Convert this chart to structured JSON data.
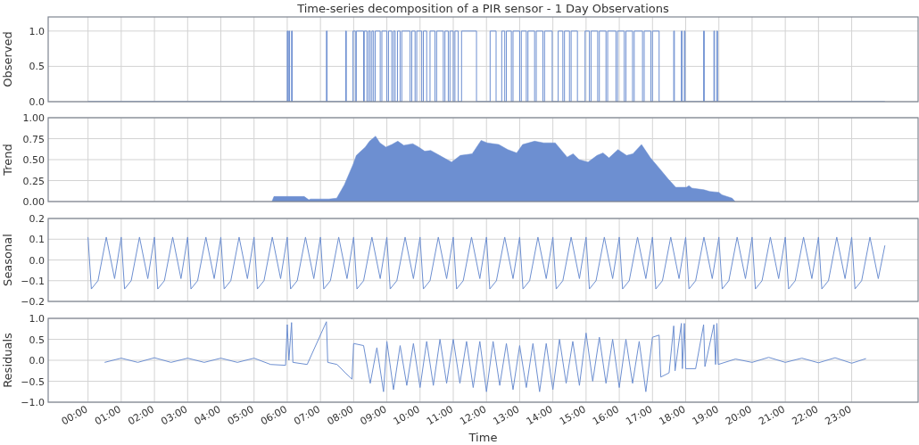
{
  "chart_data": [
    {
      "type": "step",
      "title": "Time-series decomposition of a PIR sensor - 1 Day Observations",
      "ylabel": "Observed",
      "xlim": [
        -1.2,
        25
      ],
      "xticks": [
        0,
        1,
        2,
        3,
        4,
        5,
        6,
        7,
        8,
        9,
        10,
        11,
        12,
        13,
        14,
        15,
        16,
        17,
        18,
        19,
        20,
        21,
        22,
        23
      ],
      "ylim": [
        0,
        1.2
      ],
      "yticks": [
        {
          "value": 0,
          "label": "0.0"
        },
        {
          "value": 0.5,
          "label": "0.5"
        },
        {
          "value": 1,
          "label": "1.0"
        }
      ],
      "grid": true,
      "tick_labels": "y",
      "series": [
        {
          "color": "#6d8fd1",
          "x": [
            0,
            6.0,
            6.02,
            6.05,
            6.07,
            6.13,
            6.15,
            7.18,
            7.2,
            7.76,
            7.78,
            7.98,
            8.05,
            8.08,
            8.3,
            8.32,
            8.4,
            8.45,
            8.5,
            8.55,
            8.6,
            8.65,
            8.8,
            8.85,
            9.0,
            9.05,
            9.15,
            9.2,
            9.25,
            9.32,
            9.4,
            9.45,
            9.7,
            9.75,
            9.85,
            9.9,
            10.05,
            10.1,
            10.2,
            10.3,
            10.45,
            10.5,
            10.7,
            10.75,
            10.85,
            10.9,
            11.0,
            11.05,
            11.15,
            11.25,
            11.7,
            12.11,
            12.29,
            12.46,
            12.55,
            12.6,
            12.75,
            12.8,
            13.0,
            13.05,
            13.2,
            13.25,
            13.45,
            13.5,
            13.7,
            13.75,
            13.98,
            14.16,
            14.3,
            14.35,
            14.5,
            14.55,
            14.74,
            14.97,
            15.1,
            15.15,
            15.35,
            15.4,
            15.6,
            15.65,
            15.9,
            15.95,
            16.15,
            16.2,
            16.4,
            16.45,
            16.7,
            16.75,
            16.95,
            17.0,
            17.2,
            17.64,
            17.66,
            17.87,
            17.89,
            17.96,
            17.98,
            18.54,
            18.56,
            18.85,
            18.87,
            18.94,
            18.96,
            24.0
          ],
          "values": [
            0,
            1,
            0,
            1,
            0,
            1,
            0,
            1,
            0,
            1,
            0,
            1,
            0,
            1,
            0,
            1,
            0,
            1,
            0,
            1,
            0,
            1,
            0,
            1,
            0,
            1,
            0,
            1,
            0,
            1,
            0,
            1,
            0,
            1,
            0,
            1,
            0,
            1,
            0,
            1,
            0,
            1,
            0,
            1,
            0,
            1,
            0,
            1,
            0,
            1,
            0,
            1,
            0,
            1,
            0,
            1,
            0,
            1,
            0,
            1,
            0,
            1,
            0,
            1,
            0,
            1,
            0,
            1,
            0,
            1,
            0,
            1,
            0,
            1,
            0,
            1,
            0,
            1,
            0,
            1,
            0,
            1,
            0,
            1,
            0,
            1,
            0,
            1,
            0,
            1,
            0,
            1,
            0,
            1,
            0,
            1,
            0,
            1,
            0,
            1,
            0,
            1,
            0,
            0
          ]
        }
      ]
    },
    {
      "type": "area",
      "ylabel": "Trend",
      "xlim": [
        -1.2,
        25
      ],
      "xticks": [
        0,
        1,
        2,
        3,
        4,
        5,
        6,
        7,
        8,
        9,
        10,
        11,
        12,
        13,
        14,
        15,
        16,
        17,
        18,
        19,
        20,
        21,
        22,
        23
      ],
      "ylim": [
        0,
        1
      ],
      "yticks": [
        {
          "value": 0,
          "label": "0.00"
        },
        {
          "value": 0.25,
          "label": "0.25"
        },
        {
          "value": 0.5,
          "label": "0.50"
        },
        {
          "value": 0.75,
          "label": "0.75"
        },
        {
          "value": 1,
          "label": "1.00"
        }
      ],
      "grid": true,
      "tick_labels": "y",
      "series": [
        {
          "color": "#6d8fd1",
          "x": [
            5.54,
            5.6,
            6.51,
            6.65,
            6.7,
            7.25,
            7.49,
            7.72,
            7.99,
            8.08,
            8.35,
            8.48,
            8.66,
            8.79,
            8.97,
            9.15,
            9.33,
            9.51,
            9.78,
            9.96,
            10.14,
            10.32,
            10.59,
            10.95,
            11.21,
            11.57,
            11.84,
            12.02,
            12.37,
            12.64,
            12.91,
            13.09,
            13.45,
            13.72,
            14.07,
            14.43,
            14.61,
            14.79,
            15.06,
            15.33,
            15.51,
            15.69,
            15.96,
            16.22,
            16.41,
            16.67,
            16.94,
            17.2,
            17.47,
            17.7,
            18.02,
            18.1,
            18.19,
            18.55,
            18.73,
            19.0,
            19.09,
            19.4,
            19.49
          ],
          "values": [
            0,
            0.06,
            0.06,
            0.02,
            0.03,
            0.03,
            0.04,
            0.2,
            0.45,
            0.55,
            0.65,
            0.72,
            0.78,
            0.7,
            0.65,
            0.68,
            0.72,
            0.67,
            0.69,
            0.65,
            0.6,
            0.61,
            0.55,
            0.47,
            0.55,
            0.57,
            0.73,
            0.7,
            0.68,
            0.62,
            0.58,
            0.68,
            0.72,
            0.7,
            0.7,
            0.53,
            0.57,
            0.5,
            0.47,
            0.55,
            0.58,
            0.52,
            0.62,
            0.55,
            0.57,
            0.68,
            0.52,
            0.4,
            0.27,
            0.17,
            0.17,
            0.19,
            0.16,
            0.14,
            0.12,
            0.11,
            0.08,
            0.04,
            0
          ]
        }
      ]
    },
    {
      "type": "line",
      "ylabel": "Seasonal",
      "xlim": [
        -1.2,
        25
      ],
      "xticks": [
        0,
        1,
        2,
        3,
        4,
        5,
        6,
        7,
        8,
        9,
        10,
        11,
        12,
        13,
        14,
        15,
        16,
        17,
        18,
        19,
        20,
        21,
        22,
        23
      ],
      "ylim": [
        -0.2,
        0.2
      ],
      "yticks": [
        {
          "value": -0.2,
          "label": "−0.2"
        },
        {
          "value": -0.1,
          "label": "−0.1"
        },
        {
          "value": 0,
          "label": "0.0"
        },
        {
          "value": 0.1,
          "label": "0.1"
        },
        {
          "value": 0.2,
          "label": "0.2"
        }
      ],
      "grid": true,
      "tick_labels": "y",
      "series": [
        {
          "color": "#6d8fd1",
          "x": [
            0,
            0.1,
            0.3,
            0.55,
            0.8,
            1,
            1.1,
            1.3,
            1.55,
            1.8,
            2,
            2.1,
            2.3,
            2.55,
            2.8,
            3,
            3.1,
            3.3,
            3.55,
            3.8,
            4,
            4.1,
            4.3,
            4.55,
            4.8,
            5,
            5.1,
            5.3,
            5.55,
            5.8,
            6,
            6.1,
            6.3,
            6.55,
            6.8,
            7,
            7.1,
            7.3,
            7.55,
            7.8,
            8,
            8.1,
            8.3,
            8.55,
            8.8,
            9,
            9.1,
            9.3,
            9.55,
            9.8,
            10,
            10.1,
            10.3,
            10.55,
            10.8,
            11,
            11.1,
            11.3,
            11.55,
            11.8,
            12,
            12.1,
            12.3,
            12.55,
            12.8,
            13,
            13.1,
            13.3,
            13.55,
            13.8,
            14,
            14.1,
            14.3,
            14.55,
            14.8,
            15,
            15.1,
            15.3,
            15.55,
            15.8,
            16,
            16.1,
            16.3,
            16.55,
            16.8,
            17,
            17.1,
            17.3,
            17.55,
            17.8,
            18,
            18.1,
            18.3,
            18.55,
            18.8,
            19,
            19.1,
            19.3,
            19.55,
            19.8,
            20,
            20.1,
            20.3,
            20.55,
            20.8,
            21,
            21.1,
            21.3,
            21.55,
            21.8,
            22,
            22.1,
            22.3,
            22.55,
            22.8,
            23,
            23.1,
            23.3,
            23.55,
            23.8,
            24
          ],
          "values": [
            0.11,
            -0.14,
            -0.1,
            0.11,
            -0.09,
            0.11,
            -0.14,
            -0.1,
            0.11,
            -0.09,
            0.11,
            -0.14,
            -0.1,
            0.11,
            -0.09,
            0.11,
            -0.14,
            -0.1,
            0.11,
            -0.09,
            0.11,
            -0.14,
            -0.1,
            0.11,
            -0.09,
            0.11,
            -0.14,
            -0.1,
            0.11,
            -0.09,
            0.11,
            -0.14,
            -0.1,
            0.11,
            -0.09,
            0.11,
            -0.14,
            -0.1,
            0.11,
            -0.09,
            0.11,
            -0.14,
            -0.1,
            0.11,
            -0.09,
            0.11,
            -0.14,
            -0.1,
            0.11,
            -0.09,
            0.11,
            -0.14,
            -0.1,
            0.11,
            -0.09,
            0.11,
            -0.14,
            -0.1,
            0.11,
            -0.09,
            0.11,
            -0.14,
            -0.1,
            0.11,
            -0.09,
            0.11,
            -0.14,
            -0.1,
            0.11,
            -0.09,
            0.11,
            -0.14,
            -0.1,
            0.11,
            -0.09,
            0.11,
            -0.14,
            -0.1,
            0.11,
            -0.09,
            0.11,
            -0.14,
            -0.1,
            0.11,
            -0.09,
            0.11,
            -0.14,
            -0.1,
            0.11,
            -0.09,
            0.11,
            -0.14,
            -0.1,
            0.11,
            -0.09,
            0.11,
            -0.14,
            -0.1,
            0.11,
            -0.09,
            0.11,
            -0.14,
            -0.1,
            0.11,
            -0.09,
            0.11,
            -0.14,
            -0.1,
            0.11,
            -0.09,
            0.11,
            -0.14,
            -0.1,
            0.11,
            -0.09,
            0.11,
            -0.14,
            -0.1,
            0.11,
            -0.09,
            0.07
          ]
        }
      ]
    },
    {
      "type": "line",
      "ylabel": "Residuals",
      "xlabel": "Time",
      "xlim": [
        -1.2,
        25
      ],
      "xticks": [
        {
          "value": 0,
          "label": "00:00"
        },
        {
          "value": 1,
          "label": "01:00"
        },
        {
          "value": 2,
          "label": "02:00"
        },
        {
          "value": 3,
          "label": "03:00"
        },
        {
          "value": 4,
          "label": "04:00"
        },
        {
          "value": 5,
          "label": "05:00"
        },
        {
          "value": 6,
          "label": "06:00"
        },
        {
          "value": 7,
          "label": "07:00"
        },
        {
          "value": 8,
          "label": "08:00"
        },
        {
          "value": 9,
          "label": "09:00"
        },
        {
          "value": 10,
          "label": "10:00"
        },
        {
          "value": 11,
          "label": "11:00"
        },
        {
          "value": 12,
          "label": "12:00"
        },
        {
          "value": 13,
          "label": "13:00"
        },
        {
          "value": 14,
          "label": "14:00"
        },
        {
          "value": 15,
          "label": "15:00"
        },
        {
          "value": 16,
          "label": "16:00"
        },
        {
          "value": 17,
          "label": "17:00"
        },
        {
          "value": 18,
          "label": "18:00"
        },
        {
          "value": 19,
          "label": "19:00"
        },
        {
          "value": 20,
          "label": "20:00"
        },
        {
          "value": 21,
          "label": "21:00"
        },
        {
          "value": 22,
          "label": "22:00"
        },
        {
          "value": 23,
          "label": "23:00"
        }
      ],
      "ylim": [
        -1,
        1
      ],
      "yticks": [
        {
          "value": -1,
          "label": "−1.0"
        },
        {
          "value": -0.5,
          "label": "−0.5"
        },
        {
          "value": 0,
          "label": "0.0"
        },
        {
          "value": 0.5,
          "label": "0.5"
        },
        {
          "value": 1,
          "label": "1.0"
        }
      ],
      "grid": true,
      "series": [
        {
          "color": "#6d8fd1",
          "x": [
            0.5,
            1.0,
            1.5,
            2.0,
            2.5,
            3.0,
            3.5,
            4.0,
            4.5,
            5.0,
            5.5,
            5.95,
            6.0,
            6.05,
            6.13,
            6.17,
            6.6,
            7.18,
            7.22,
            7.5,
            7.75,
            7.95,
            8.0,
            8.3,
            8.5,
            8.7,
            8.9,
            9.0,
            9.2,
            9.4,
            9.6,
            9.8,
            10.0,
            10.2,
            10.4,
            10.6,
            10.8,
            11.0,
            11.2,
            11.4,
            11.6,
            11.8,
            12.0,
            12.2,
            12.4,
            12.6,
            12.8,
            13.0,
            13.2,
            13.4,
            13.6,
            13.8,
            14.0,
            14.2,
            14.4,
            14.6,
            14.8,
            15.0,
            15.2,
            15.4,
            15.6,
            15.8,
            16.0,
            16.2,
            16.4,
            16.6,
            16.8,
            17.0,
            17.2,
            17.25,
            17.5,
            17.64,
            17.68,
            17.87,
            17.9,
            17.96,
            18.0,
            18.3,
            18.54,
            18.58,
            18.85,
            18.9,
            18.94,
            18.98,
            19.5,
            20.0,
            20.5,
            21.0,
            21.5,
            22.0,
            22.5,
            23.0,
            23.43
          ],
          "values": [
            -0.05,
            0.05,
            -0.05,
            0.06,
            -0.05,
            0.05,
            -0.05,
            0.05,
            -0.05,
            0.05,
            -0.1,
            -0.12,
            0.85,
            0,
            0.9,
            -0.05,
            -0.1,
            0.92,
            -0.05,
            -0.1,
            -0.3,
            -0.45,
            0.4,
            0.35,
            -0.55,
            0.3,
            -0.75,
            0.45,
            -0.7,
            0.35,
            -0.6,
            0.4,
            -0.65,
            0.45,
            -0.6,
            0.5,
            -0.55,
            0.5,
            -0.55,
            0.45,
            -0.65,
            0.45,
            -0.75,
            0.45,
            -0.6,
            0.4,
            -0.7,
            0.35,
            -0.65,
            0.4,
            -0.75,
            0.4,
            -0.7,
            0.5,
            -0.55,
            0.45,
            -0.6,
            0.65,
            -0.5,
            0.55,
            -0.55,
            0.5,
            -0.65,
            0.5,
            -0.55,
            0.45,
            -0.75,
            0.55,
            0.6,
            -0.4,
            -0.3,
            0.82,
            -0.25,
            0.88,
            -0.2,
            0.88,
            -0.2,
            -0.2,
            0.85,
            -0.15,
            0.85,
            -0.1,
            0.88,
            -0.1,
            0.03,
            -0.05,
            0.07,
            -0.05,
            0.05,
            -0.06,
            0.06,
            -0.07,
            0.04
          ]
        }
      ]
    }
  ]
}
